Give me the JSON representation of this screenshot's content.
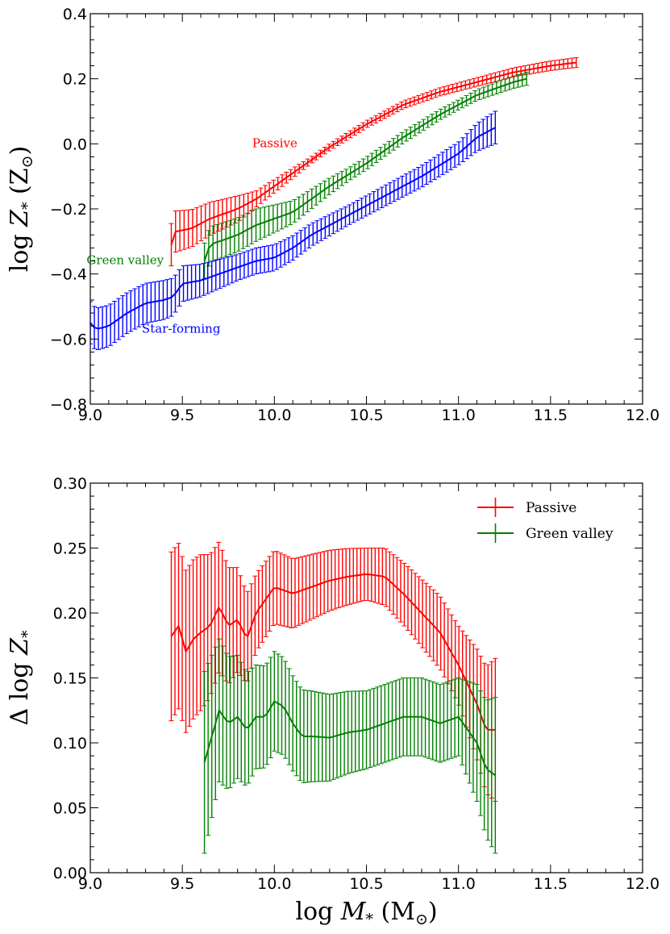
{
  "chart_data": [
    {
      "type": "line",
      "panel": "top",
      "ylabel": "log Z* (Z⊙)",
      "ylabel_parts": {
        "pre": "log ",
        "var": "Z",
        "sub": "*",
        "unit": " (Z",
        "unit_sub": "⊙",
        "post": ")"
      },
      "xlabel": "",
      "xlim": [
        9.0,
        12.0
      ],
      "ylim": [
        -0.8,
        0.4
      ],
      "xticks": [
        9.0,
        9.5,
        10.0,
        10.5,
        11.0,
        11.5,
        12.0
      ],
      "xtick_labels": [
        "9.0",
        "9.5",
        "10.0",
        "10.5",
        "11.0",
        "11.5",
        "12.0"
      ],
      "yticks": [
        -0.8,
        -0.6,
        -0.4,
        -0.2,
        0.0,
        0.2,
        0.4
      ],
      "ytick_labels": [
        "−0.8",
        "−0.6",
        "−0.4",
        "−0.2",
        "0.0",
        "0.2",
        "0.4"
      ],
      "annotations": [
        {
          "text": "Passive",
          "color": "#ff0000",
          "x": 9.88,
          "y": -0.01
        },
        {
          "text": "Green valley",
          "color": "#008000",
          "x": 8.98,
          "y": -0.37
        },
        {
          "text": "Star-forming",
          "color": "#0000ff",
          "x": 9.28,
          "y": -0.58
        }
      ],
      "series": [
        {
          "name": "Passive",
          "color": "#ff0000",
          "x_start": 9.44,
          "x_end": 11.64,
          "n": 96,
          "knots_x": [
            9.44,
            9.46,
            9.55,
            9.65,
            9.7,
            9.8,
            9.9,
            10.0,
            10.1,
            10.2,
            10.3,
            10.5,
            10.7,
            10.9,
            11.1,
            11.3,
            11.5,
            11.64
          ],
          "knots_y": [
            -0.31,
            -0.27,
            -0.26,
            -0.23,
            -0.22,
            -0.2,
            -0.17,
            -0.13,
            -0.09,
            -0.05,
            -0.01,
            0.06,
            0.12,
            0.16,
            0.19,
            0.22,
            0.24,
            0.25
          ],
          "err_knots_x": [
            9.44,
            9.8,
            9.9,
            10.2,
            11.64
          ],
          "err_knots_y": [
            0.065,
            0.04,
            0.025,
            0.01,
            0.015
          ]
        },
        {
          "name": "Green valley",
          "color": "#008000",
          "x_start": 9.62,
          "x_end": 11.37,
          "n": 76,
          "knots_x": [
            9.62,
            9.65,
            9.8,
            9.9,
            10.0,
            10.1,
            10.2,
            10.3,
            10.5,
            10.7,
            10.9,
            11.1,
            11.2,
            11.3,
            11.37
          ],
          "knots_y": [
            -0.36,
            -0.31,
            -0.28,
            -0.25,
            -0.23,
            -0.21,
            -0.17,
            -0.13,
            -0.06,
            0.02,
            0.09,
            0.15,
            0.17,
            0.19,
            0.2
          ],
          "err_knots_x": [
            9.62,
            9.9,
            10.1,
            10.4,
            11.0,
            11.37
          ],
          "err_knots_y": [
            0.055,
            0.05,
            0.035,
            0.02,
            0.015,
            0.02
          ]
        },
        {
          "name": "Star-forming",
          "color": "#0000ff",
          "x_start": 9.0,
          "x_end": 11.2,
          "n": 101,
          "knots_x": [
            9.0,
            9.03,
            9.1,
            9.2,
            9.3,
            9.4,
            9.45,
            9.5,
            9.6,
            9.7,
            9.8,
            9.9,
            10.0,
            10.1,
            10.2,
            10.4,
            10.6,
            10.8,
            11.0,
            11.1,
            11.2
          ],
          "knots_y": [
            -0.55,
            -0.57,
            -0.56,
            -0.52,
            -0.49,
            -0.48,
            -0.47,
            -0.43,
            -0.42,
            -0.4,
            -0.38,
            -0.36,
            -0.35,
            -0.32,
            -0.28,
            -0.22,
            -0.16,
            -0.1,
            -0.03,
            0.02,
            0.05
          ],
          "err_knots_x": [
            9.0,
            9.4,
            9.8,
            10.0,
            10.4,
            11.0,
            11.2
          ],
          "err_knots_y": [
            0.065,
            0.06,
            0.04,
            0.04,
            0.03,
            0.035,
            0.05
          ]
        }
      ]
    },
    {
      "type": "line",
      "panel": "bottom",
      "ylabel": "Δ log Z*",
      "ylabel_parts": {
        "pre": "Δ log ",
        "var": "Z",
        "sub": "*"
      },
      "xlabel": "log M* (M⊙)",
      "xlabel_parts": {
        "pre": "log ",
        "var": "M",
        "sub": "*",
        "unit": " (M",
        "unit_sub": "⊙",
        "post": ")"
      },
      "xlim": [
        9.0,
        12.0
      ],
      "ylim": [
        0.0,
        0.3
      ],
      "xticks": [
        9.0,
        9.5,
        10.0,
        10.5,
        11.0,
        11.5,
        12.0
      ],
      "xtick_labels": [
        "9.0",
        "9.5",
        "10.0",
        "10.5",
        "11.0",
        "11.5",
        "12.0"
      ],
      "yticks": [
        0.0,
        0.05,
        0.1,
        0.15,
        0.2,
        0.25,
        0.3
      ],
      "ytick_labels": [
        "0.00",
        "0.05",
        "0.10",
        "0.15",
        "0.20",
        "0.25",
        "0.30"
      ],
      "legend": {
        "location": "top-right",
        "entries": [
          "Passive",
          "Green valley"
        ]
      },
      "series": [
        {
          "name": "Passive",
          "color": "#ff0000",
          "x_start": 9.44,
          "x_end": 11.2,
          "n": 90,
          "knots_x": [
            9.44,
            9.48,
            9.52,
            9.56,
            9.6,
            9.65,
            9.7,
            9.75,
            9.8,
            9.85,
            9.9,
            9.95,
            10.0,
            10.1,
            10.2,
            10.3,
            10.4,
            10.5,
            10.6,
            10.7,
            10.8,
            10.9,
            11.0,
            11.05,
            11.1,
            11.15,
            11.2
          ],
          "knots_y": [
            0.182,
            0.19,
            0.17,
            0.18,
            0.185,
            0.19,
            0.205,
            0.19,
            0.195,
            0.18,
            0.2,
            0.21,
            0.22,
            0.215,
            0.22,
            0.225,
            0.228,
            0.23,
            0.228,
            0.215,
            0.2,
            0.185,
            0.16,
            0.145,
            0.13,
            0.11,
            0.11
          ],
          "err_knots_x": [
            9.44,
            9.6,
            9.9,
            10.5,
            11.0,
            11.2
          ],
          "err_knots_y": [
            0.065,
            0.06,
            0.03,
            0.02,
            0.03,
            0.055
          ]
        },
        {
          "name": "Green valley",
          "color": "#008000",
          "x_start": 9.62,
          "x_end": 11.2,
          "n": 80,
          "knots_x": [
            9.62,
            9.66,
            9.7,
            9.75,
            9.8,
            9.85,
            9.9,
            9.95,
            10.0,
            10.05,
            10.1,
            10.15,
            10.2,
            10.3,
            10.4,
            10.5,
            10.6,
            10.7,
            10.8,
            10.9,
            11.0,
            11.05,
            11.1,
            11.15,
            11.2
          ],
          "knots_y": [
            0.085,
            0.105,
            0.125,
            0.115,
            0.12,
            0.11,
            0.12,
            0.12,
            0.132,
            0.128,
            0.115,
            0.105,
            0.105,
            0.104,
            0.108,
            0.11,
            0.115,
            0.12,
            0.12,
            0.115,
            0.12,
            0.11,
            0.1,
            0.08,
            0.075
          ],
          "err_knots_x": [
            9.62,
            9.7,
            9.9,
            10.5,
            11.0,
            11.2
          ],
          "err_knots_y": [
            0.07,
            0.055,
            0.04,
            0.03,
            0.03,
            0.06
          ]
        }
      ]
    }
  ]
}
